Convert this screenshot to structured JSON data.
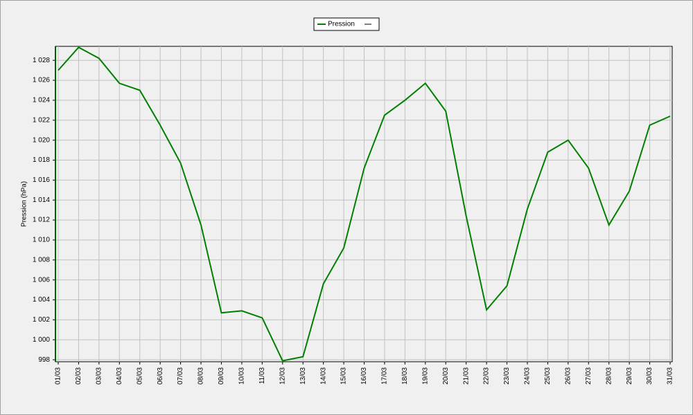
{
  "chart_data": {
    "type": "line",
    "y_label": "Pression (hPa)",
    "categories": [
      "01/03",
      "02/03",
      "03/03",
      "04/03",
      "05/03",
      "06/03",
      "07/03",
      "08/03",
      "09/03",
      "10/03",
      "11/03",
      "12/03",
      "13/03",
      "14/03",
      "15/03",
      "16/03",
      "17/03",
      "18/03",
      "19/03",
      "20/03",
      "21/03",
      "22/03",
      "23/03",
      "24/03",
      "25/03",
      "26/03",
      "27/03",
      "28/03",
      "29/03",
      "30/03",
      "31/03"
    ],
    "series": [
      {
        "name": "Pression",
        "color": "#008000",
        "values": [
          1027.0,
          1029.3,
          1028.2,
          1025.7,
          1025.0,
          1021.5,
          1017.7,
          1011.5,
          1002.7,
          1002.9,
          1002.2,
          997.9,
          998.3,
          1005.6,
          1009.2,
          1017.2,
          1022.5,
          1024.0,
          1025.7,
          1022.9,
          1012.4,
          1003.0,
          1005.4,
          1013.1,
          1018.8,
          1020.0,
          1017.2,
          1011.5,
          1014.9,
          1021.5,
          1022.4
        ]
      }
    ],
    "ylim": [
      997.8,
      1029.4
    ],
    "yticks": [
      998,
      {
        "value": 1000,
        "label": "1 000"
      },
      {
        "value": 1002,
        "label": "1 002"
      },
      {
        "value": 1004,
        "label": "1 004"
      },
      {
        "value": 1006,
        "label": "1 006"
      },
      {
        "value": 1008,
        "label": "1 008"
      },
      {
        "value": 1010,
        "label": "1 010"
      },
      {
        "value": 1012,
        "label": "1 012"
      },
      {
        "value": 1014,
        "label": "1 014"
      },
      {
        "value": 1016,
        "label": "1 016"
      },
      {
        "value": 1018,
        "label": "1 018"
      },
      {
        "value": 1020,
        "label": "1 020"
      },
      {
        "value": 1022,
        "label": "1 022"
      },
      {
        "value": 1024,
        "label": "1 024"
      },
      {
        "value": 1026,
        "label": "1 026"
      },
      {
        "value": 1028,
        "label": "1 028"
      }
    ],
    "grid": true
  }
}
